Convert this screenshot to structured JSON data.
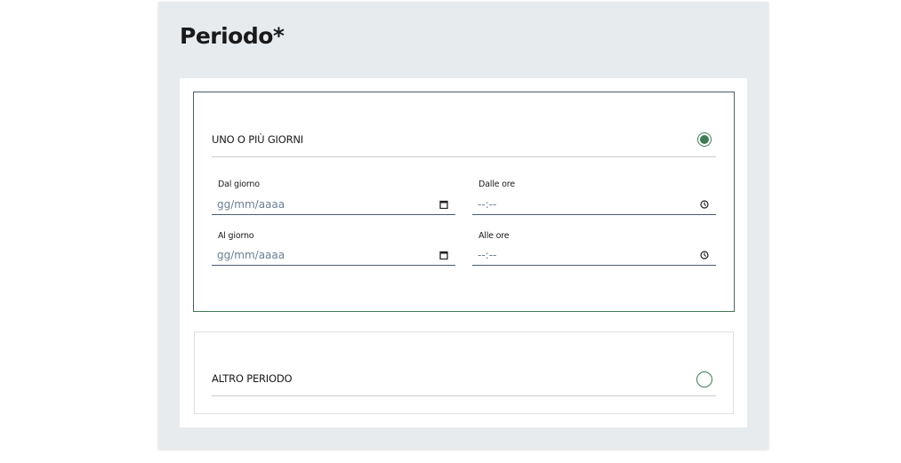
{
  "title": "Periodo*",
  "options": [
    {
      "label": "UNO O PIÙ GIORNI",
      "selected": true
    },
    {
      "label": "ALTRO PERIODO",
      "selected": false
    }
  ],
  "fields": {
    "from_date": {
      "label": "Dal giorno",
      "placeholder": "gg/mm/aaaa",
      "icon": "calendar-icon"
    },
    "from_time": {
      "label": "Dalle ore",
      "placeholder": "--:--",
      "icon": "clock-icon"
    },
    "to_date": {
      "label": "Al giorno",
      "placeholder": "gg/mm/aaaa",
      "icon": "calendar-icon"
    },
    "to_time": {
      "label": "Alle ore",
      "placeholder": "--:--",
      "icon": "clock-icon"
    }
  },
  "colors": {
    "accent": "#3f7a55",
    "panel": "#e8ebee"
  }
}
